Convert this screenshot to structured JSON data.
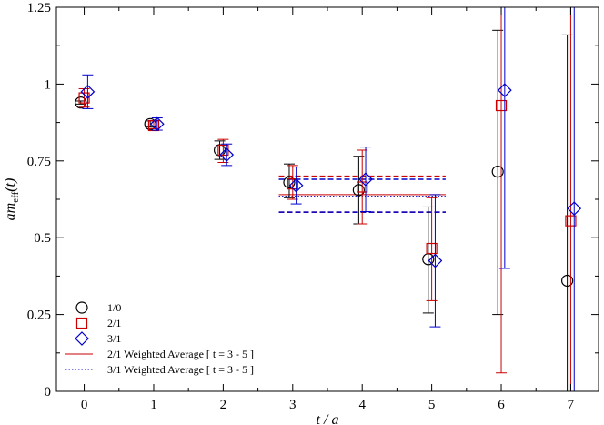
{
  "chart_data": {
    "type": "scatter",
    "xlabel": "t / a",
    "ylabel": {
      "base": "am",
      "sub": "eff",
      "arg": "(t)"
    },
    "xlim": [
      -0.4,
      7.4
    ],
    "ylim": [
      0,
      1.25
    ],
    "xticks": [
      "0",
      "1",
      "2",
      "3",
      "4",
      "5",
      "6",
      "7"
    ],
    "yticks": [
      "0",
      "0.25",
      "0.5",
      "0.75",
      "1",
      "1.25"
    ],
    "grid": false,
    "legend_position": "bottom-left",
    "series": [
      {
        "name": "1/0",
        "marker": "circle",
        "color": "#000000",
        "offset": -0.05,
        "points": [
          {
            "t": 0,
            "y": 0.94,
            "lo": 0.935,
            "hi": 0.945
          },
          {
            "t": 1,
            "y": 0.87,
            "lo": 0.86,
            "hi": 0.88
          },
          {
            "t": 2,
            "y": 0.785,
            "lo": 0.755,
            "hi": 0.815
          },
          {
            "t": 3,
            "y": 0.68,
            "lo": 0.63,
            "hi": 0.74
          },
          {
            "t": 4,
            "y": 0.655,
            "lo": 0.545,
            "hi": 0.765
          },
          {
            "t": 5,
            "y": 0.43,
            "lo": 0.255,
            "hi": 0.6
          },
          {
            "t": 6,
            "y": 0.715,
            "lo": 0.25,
            "hi": 1.175
          },
          {
            "t": 7,
            "y": 0.36,
            "lo": 0,
            "hi": 1.16
          }
        ]
      },
      {
        "name": "2/1",
        "marker": "square",
        "color": "#cc0000",
        "offset": 0,
        "points": [
          {
            "t": 0,
            "y": 0.955,
            "lo": 0.925,
            "hi": 0.985
          },
          {
            "t": 1,
            "y": 0.865,
            "lo": 0.855,
            "hi": 0.88
          },
          {
            "t": 2,
            "y": 0.785,
            "lo": 0.745,
            "hi": 0.82
          },
          {
            "t": 3,
            "y": 0.675,
            "lo": 0.625,
            "hi": 0.735
          },
          {
            "t": 4,
            "y": 0.665,
            "lo": 0.545,
            "hi": 0.785
          },
          {
            "t": 5,
            "y": 0.465,
            "lo": 0.295,
            "hi": 0.63
          },
          {
            "t": 6,
            "y": 0.93,
            "lo": 0.06,
            "hi": 1.25
          },
          {
            "t": 7,
            "y": 0.555,
            "lo": 0,
            "hi": 1.25
          }
        ]
      },
      {
        "name": "3/1",
        "marker": "diamond",
        "color": "#0000cc",
        "offset": 0.05,
        "points": [
          {
            "t": 0,
            "y": 0.975,
            "lo": 0.92,
            "hi": 1.03
          },
          {
            "t": 1,
            "y": 0.87,
            "lo": 0.85,
            "hi": 0.89
          },
          {
            "t": 2,
            "y": 0.77,
            "lo": 0.735,
            "hi": 0.805
          },
          {
            "t": 3,
            "y": 0.67,
            "lo": 0.61,
            "hi": 0.73
          },
          {
            "t": 4,
            "y": 0.69,
            "lo": 0.585,
            "hi": 0.795
          },
          {
            "t": 5,
            "y": 0.425,
            "lo": 0.21,
            "hi": 0.64
          },
          {
            "t": 6,
            "y": 0.98,
            "lo": 0.4,
            "hi": 1.25
          },
          {
            "t": 7,
            "y": 0.595,
            "lo": 0,
            "hi": 1.25
          }
        ]
      }
    ],
    "bands": [
      {
        "name": "2/1 Weighted Average [ t = 3 - 5 ]",
        "color": "#cc0000",
        "style": "solid",
        "x_range": [
          2.8,
          5.2
        ],
        "central": 0.64,
        "upper": 0.7,
        "lower": 0.583
      },
      {
        "name": "3/1 Weighted Average [ t = 3 - 5 ]",
        "color": "#0000cc",
        "style": "dotted",
        "x_range": [
          2.8,
          5.2
        ],
        "central": 0.635,
        "upper": 0.69,
        "lower": 0.583
      }
    ],
    "legend": [
      {
        "label": "1/0",
        "marker": "circle",
        "color": "#000000"
      },
      {
        "label": "2/1",
        "marker": "square",
        "color": "#cc0000"
      },
      {
        "label": "3/1",
        "marker": "diamond",
        "color": "#0000cc"
      },
      {
        "label": "2/1 Weighted Average [ t = 3 - 5 ]",
        "line": "solid",
        "color": "#cc0000"
      },
      {
        "label": "3/1 Weighted Average [ t = 3 - 5 ]",
        "line": "dotted",
        "color": "#0000cc"
      }
    ]
  }
}
